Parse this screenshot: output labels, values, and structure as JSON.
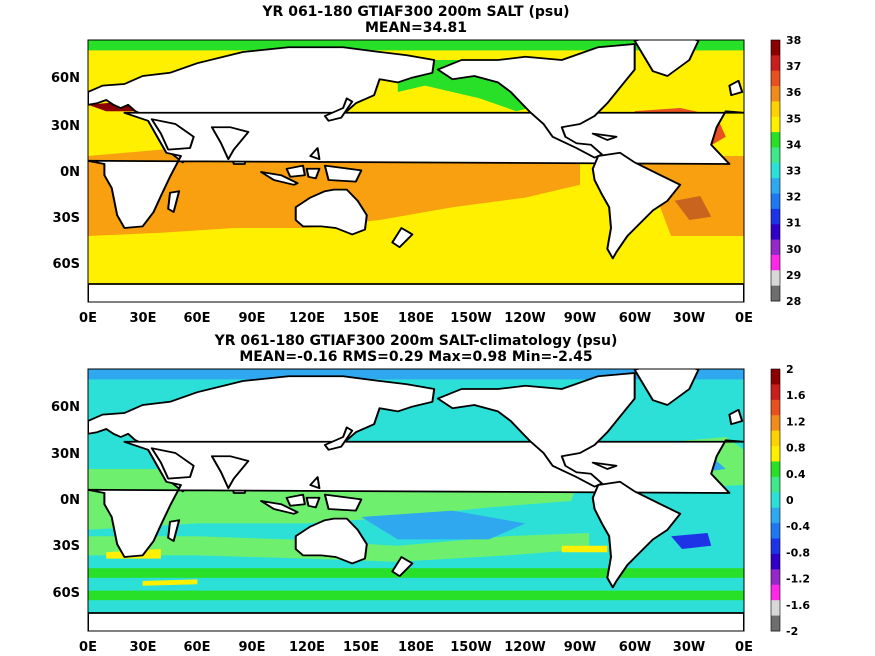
{
  "panels": [
    {
      "title_line1": "YR 061-180 GTIAF300 200m SALT (psu)",
      "title_line2": "MEAN=34.81",
      "colorbar": {
        "labels": [
          "38",
          "37",
          "36",
          "35",
          "34",
          "33",
          "32",
          "31",
          "30",
          "29",
          "28"
        ],
        "colors": [
          "#8b0000",
          "#c81e1e",
          "#e85020",
          "#f08c1e",
          "#fcd200",
          "#fff000",
          "#28e028",
          "#40e88c",
          "#2ce0d8",
          "#30a8f0",
          "#1e78f0",
          "#1e32e6",
          "#3000c8",
          "#9628c8",
          "#ff28e6",
          "#d8d8d8",
          "#6e6e6e"
        ]
      }
    },
    {
      "title_line1": "YR 061-180 GTIAF300 200m SALT-climatology (psu)",
      "title_line2": "MEAN=-0.16   RMS=0.29   Max=0.98   Min=-2.45",
      "colorbar": {
        "labels": [
          "2",
          "1.6",
          "1.2",
          "0.8",
          "0.4",
          "0",
          "-0.4",
          "-0.8",
          "-1.2",
          "-1.6",
          "-2"
        ],
        "colors": [
          "#8b0000",
          "#c81e1e",
          "#e85020",
          "#f08c1e",
          "#fcd200",
          "#fff000",
          "#28e028",
          "#40e88c",
          "#2ce0d8",
          "#30a8f0",
          "#1e78f0",
          "#1e32e6",
          "#3000c8",
          "#9628c8",
          "#ff28e6",
          "#d8d8d8",
          "#6e6e6e"
        ]
      }
    }
  ],
  "axes": {
    "x_ticks": [
      "0E",
      "30E",
      "60E",
      "90E",
      "120E",
      "150E",
      "180E",
      "150W",
      "120W",
      "90W",
      "60W",
      "30W",
      "0E"
    ],
    "y_ticks": [
      "60N",
      "30N",
      "0N",
      "30S",
      "60S"
    ]
  },
  "colors": {
    "salt_yellow": "#fff000",
    "salt_green": "#28e028",
    "salt_orange": "#f8a010",
    "salt_red": "#e85020",
    "anom_cyan": "#2ce0d8",
    "anom_green": "#6ef06e",
    "anom_blue": "#30a8f0",
    "anom_yellow": "#fff000"
  }
}
